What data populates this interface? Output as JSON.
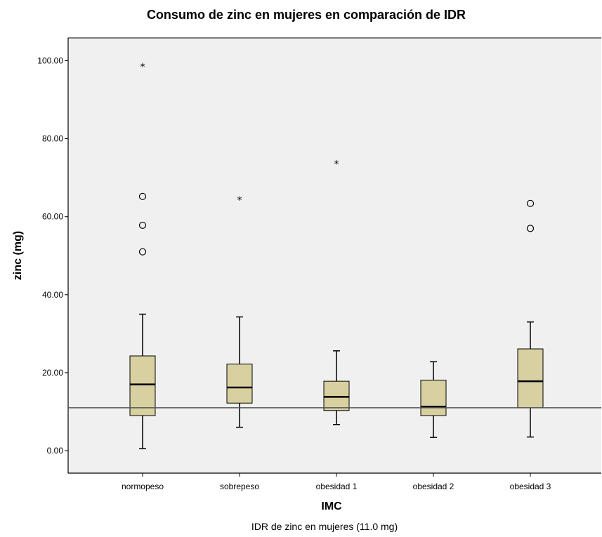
{
  "chart_data": {
    "type": "boxplot",
    "title": "Consumo de zinc en mujeres en comparación de IDR",
    "xlabel": "IMC",
    "ylabel": "zinc (mg)",
    "caption": "IDR de zinc en mujeres (11.0 mg)",
    "ylim": [
      -5,
      105
    ],
    "yticks": [
      "0.00",
      "20.00",
      "40.00",
      "60.00",
      "80.00",
      "100.00"
    ],
    "reference_line": 11.0,
    "colors": {
      "plot_bg": "#f0f0f0",
      "box_fill": "#d8d0a0",
      "frame": "#000000",
      "refline": "#555555"
    },
    "categories": [
      "normopeso",
      "sobrepeso",
      "obesidad 1",
      "obesidad 2",
      "obesidad 3"
    ],
    "boxes": [
      {
        "min": 0.5,
        "q1": 9.0,
        "median": 17.0,
        "q3": 24.3,
        "max": 35.0,
        "outliers": [
          51.0,
          57.8,
          65.2
        ],
        "extremes": [
          98.5
        ]
      },
      {
        "min": 6.0,
        "q1": 12.2,
        "median": 16.2,
        "q3": 22.2,
        "max": 34.3,
        "outliers": [],
        "extremes": [
          64.3
        ]
      },
      {
        "min": 6.7,
        "q1": 10.3,
        "median": 13.8,
        "q3": 17.8,
        "max": 25.6,
        "outliers": [],
        "extremes": [
          73.5
        ]
      },
      {
        "min": 3.4,
        "q1": 9.0,
        "median": 11.3,
        "q3": 18.1,
        "max": 22.8,
        "outliers": [],
        "extremes": []
      },
      {
        "min": 3.5,
        "q1": 11.0,
        "median": 17.8,
        "q3": 26.1,
        "max": 33.0,
        "outliers": [
          57.0,
          63.4
        ],
        "extremes": []
      }
    ]
  }
}
